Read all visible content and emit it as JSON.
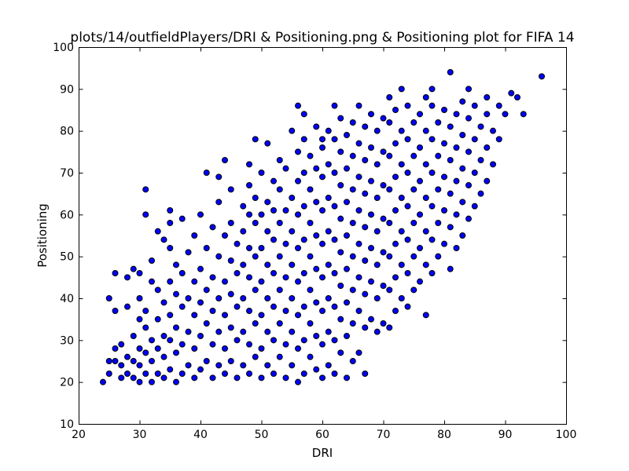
{
  "chart_data": {
    "type": "scatter",
    "title": "plots/14/outfieldPlayers/DRI & Positioning.png & Positioning plot for FIFA 14",
    "xlabel": "DRI",
    "ylabel": "Positioning",
    "xlim": [
      20,
      100
    ],
    "ylim": [
      10,
      100
    ],
    "xticks": [
      20,
      30,
      40,
      50,
      60,
      70,
      80,
      90,
      100
    ],
    "yticks": [
      10,
      20,
      30,
      40,
      50,
      60,
      70,
      80,
      90,
      100
    ],
    "grid": false,
    "legend": "none",
    "marker_color": "#0000ff",
    "edge_color": "#000000",
    "points": [
      [
        24,
        20
      ],
      [
        25,
        22
      ],
      [
        25,
        25
      ],
      [
        25,
        40
      ],
      [
        26,
        46
      ],
      [
        26,
        37
      ],
      [
        26,
        25
      ],
      [
        26,
        28
      ],
      [
        27,
        21
      ],
      [
        27,
        24
      ],
      [
        27,
        29
      ],
      [
        28,
        22
      ],
      [
        28,
        45
      ],
      [
        28,
        38
      ],
      [
        28,
        26
      ],
      [
        29,
        21
      ],
      [
        29,
        25
      ],
      [
        29,
        31
      ],
      [
        29,
        47
      ],
      [
        30,
        20
      ],
      [
        30,
        24
      ],
      [
        30,
        28
      ],
      [
        30,
        35
      ],
      [
        30,
        40
      ],
      [
        30,
        46
      ],
      [
        31,
        66
      ],
      [
        31,
        60
      ],
      [
        31,
        22
      ],
      [
        31,
        27
      ],
      [
        31,
        33
      ],
      [
        31,
        37
      ],
      [
        32,
        20
      ],
      [
        32,
        25
      ],
      [
        32,
        30
      ],
      [
        32,
        44
      ],
      [
        32,
        49
      ],
      [
        33,
        56
      ],
      [
        33,
        22
      ],
      [
        33,
        28
      ],
      [
        33,
        35
      ],
      [
        33,
        42
      ],
      [
        34,
        54
      ],
      [
        34,
        21
      ],
      [
        34,
        26
      ],
      [
        34,
        31
      ],
      [
        34,
        39
      ],
      [
        35,
        61
      ],
      [
        35,
        58
      ],
      [
        35,
        23
      ],
      [
        35,
        30
      ],
      [
        35,
        36
      ],
      [
        35,
        44
      ],
      [
        35,
        52
      ],
      [
        36,
        20
      ],
      [
        36,
        27
      ],
      [
        36,
        33
      ],
      [
        36,
        41
      ],
      [
        36,
        48
      ],
      [
        37,
        59
      ],
      [
        37,
        22
      ],
      [
        37,
        29
      ],
      [
        37,
        38
      ],
      [
        37,
        46
      ],
      [
        38,
        24
      ],
      [
        38,
        32
      ],
      [
        38,
        40
      ],
      [
        38,
        51
      ],
      [
        39,
        21
      ],
      [
        39,
        28
      ],
      [
        39,
        36
      ],
      [
        39,
        44
      ],
      [
        39,
        55
      ],
      [
        40,
        60
      ],
      [
        40,
        23
      ],
      [
        40,
        31
      ],
      [
        40,
        39
      ],
      [
        40,
        47
      ],
      [
        41,
        70
      ],
      [
        41,
        25
      ],
      [
        41,
        34
      ],
      [
        41,
        42
      ],
      [
        41,
        52
      ],
      [
        42,
        57
      ],
      [
        42,
        21
      ],
      [
        42,
        29
      ],
      [
        42,
        37
      ],
      [
        42,
        45
      ],
      [
        43,
        69
      ],
      [
        43,
        63
      ],
      [
        43,
        24
      ],
      [
        43,
        32
      ],
      [
        43,
        40
      ],
      [
        43,
        50
      ],
      [
        44,
        73
      ],
      [
        44,
        22
      ],
      [
        44,
        28
      ],
      [
        44,
        36
      ],
      [
        44,
        44
      ],
      [
        44,
        55
      ],
      [
        45,
        66
      ],
      [
        45,
        25
      ],
      [
        45,
        33
      ],
      [
        45,
        41
      ],
      [
        45,
        49
      ],
      [
        45,
        58
      ],
      [
        46,
        21
      ],
      [
        46,
        30
      ],
      [
        46,
        38
      ],
      [
        46,
        46
      ],
      [
        46,
        53
      ],
      [
        47,
        62
      ],
      [
        47,
        24
      ],
      [
        47,
        32
      ],
      [
        47,
        40
      ],
      [
        47,
        48
      ],
      [
        47,
        56
      ],
      [
        48,
        72
      ],
      [
        48,
        67
      ],
      [
        48,
        22
      ],
      [
        48,
        29
      ],
      [
        48,
        37
      ],
      [
        48,
        45
      ],
      [
        48,
        52
      ],
      [
        48,
        60
      ],
      [
        49,
        78
      ],
      [
        49,
        26
      ],
      [
        49,
        34
      ],
      [
        49,
        42
      ],
      [
        49,
        50
      ],
      [
        49,
        58
      ],
      [
        49,
        64
      ],
      [
        50,
        21
      ],
      [
        50,
        28
      ],
      [
        50,
        36
      ],
      [
        50,
        44
      ],
      [
        50,
        52
      ],
      [
        50,
        60
      ],
      [
        50,
        70
      ],
      [
        51,
        77
      ],
      [
        51,
        24
      ],
      [
        51,
        32
      ],
      [
        51,
        40
      ],
      [
        51,
        48
      ],
      [
        51,
        56
      ],
      [
        51,
        63
      ],
      [
        52,
        68
      ],
      [
        52,
        22
      ],
      [
        52,
        30
      ],
      [
        52,
        38
      ],
      [
        52,
        46
      ],
      [
        52,
        54
      ],
      [
        52,
        61
      ],
      [
        53,
        73
      ],
      [
        53,
        26
      ],
      [
        53,
        34
      ],
      [
        53,
        42
      ],
      [
        53,
        50
      ],
      [
        53,
        58
      ],
      [
        53,
        66
      ],
      [
        54,
        21
      ],
      [
        54,
        29
      ],
      [
        54,
        37
      ],
      [
        54,
        45
      ],
      [
        54,
        53
      ],
      [
        54,
        61
      ],
      [
        54,
        71
      ],
      [
        55,
        80
      ],
      [
        55,
        24
      ],
      [
        55,
        32
      ],
      [
        55,
        40
      ],
      [
        55,
        48
      ],
      [
        55,
        56
      ],
      [
        55,
        64
      ],
      [
        56,
        86
      ],
      [
        56,
        20
      ],
      [
        56,
        28
      ],
      [
        56,
        36
      ],
      [
        56,
        44
      ],
      [
        56,
        52
      ],
      [
        56,
        60
      ],
      [
        56,
        68
      ],
      [
        56,
        75
      ],
      [
        57,
        84
      ],
      [
        57,
        22
      ],
      [
        57,
        30
      ],
      [
        57,
        38
      ],
      [
        57,
        46
      ],
      [
        57,
        54
      ],
      [
        57,
        62
      ],
      [
        57,
        70
      ],
      [
        57,
        78
      ],
      [
        58,
        26
      ],
      [
        58,
        34
      ],
      [
        58,
        42
      ],
      [
        58,
        50
      ],
      [
        58,
        58
      ],
      [
        58,
        66
      ],
      [
        58,
        74
      ],
      [
        59,
        81
      ],
      [
        59,
        23
      ],
      [
        59,
        31
      ],
      [
        59,
        39
      ],
      [
        59,
        47
      ],
      [
        59,
        55
      ],
      [
        59,
        63
      ],
      [
        59,
        71
      ],
      [
        60,
        78
      ],
      [
        60,
        21
      ],
      [
        60,
        29
      ],
      [
        60,
        37
      ],
      [
        60,
        45
      ],
      [
        60,
        53
      ],
      [
        60,
        61
      ],
      [
        60,
        69
      ],
      [
        60,
        76
      ],
      [
        61,
        24
      ],
      [
        61,
        32
      ],
      [
        61,
        40
      ],
      [
        61,
        48
      ],
      [
        61,
        56
      ],
      [
        61,
        64
      ],
      [
        61,
        72
      ],
      [
        61,
        80
      ],
      [
        62,
        86
      ],
      [
        62,
        22
      ],
      [
        62,
        30
      ],
      [
        62,
        38
      ],
      [
        62,
        46
      ],
      [
        62,
        54
      ],
      [
        62,
        62
      ],
      [
        62,
        70
      ],
      [
        62,
        78
      ],
      [
        63,
        27
      ],
      [
        63,
        35
      ],
      [
        63,
        43
      ],
      [
        63,
        51
      ],
      [
        63,
        59
      ],
      [
        63,
        67
      ],
      [
        63,
        75
      ],
      [
        63,
        83
      ],
      [
        64,
        21
      ],
      [
        64,
        31
      ],
      [
        64,
        39
      ],
      [
        64,
        47
      ],
      [
        64,
        55
      ],
      [
        64,
        63
      ],
      [
        64,
        71
      ],
      [
        64,
        79
      ],
      [
        65,
        25
      ],
      [
        65,
        34
      ],
      [
        65,
        42
      ],
      [
        65,
        50
      ],
      [
        65,
        58
      ],
      [
        65,
        66
      ],
      [
        65,
        74
      ],
      [
        65,
        82
      ],
      [
        66,
        86
      ],
      [
        66,
        27
      ],
      [
        66,
        37
      ],
      [
        66,
        45
      ],
      [
        66,
        53
      ],
      [
        66,
        61
      ],
      [
        66,
        69
      ],
      [
        66,
        77
      ],
      [
        67,
        22
      ],
      [
        67,
        33
      ],
      [
        67,
        41
      ],
      [
        67,
        49
      ],
      [
        67,
        57
      ],
      [
        67,
        65
      ],
      [
        67,
        73
      ],
      [
        67,
        81
      ],
      [
        68,
        35
      ],
      [
        68,
        44
      ],
      [
        68,
        52
      ],
      [
        68,
        60
      ],
      [
        68,
        68
      ],
      [
        68,
        76
      ],
      [
        68,
        84
      ],
      [
        69,
        32
      ],
      [
        69,
        40
      ],
      [
        69,
        48
      ],
      [
        69,
        56
      ],
      [
        69,
        64
      ],
      [
        69,
        72
      ],
      [
        69,
        80
      ],
      [
        70,
        34
      ],
      [
        70,
        43
      ],
      [
        70,
        51
      ],
      [
        70,
        59
      ],
      [
        70,
        67
      ],
      [
        70,
        75
      ],
      [
        70,
        83
      ],
      [
        71,
        33
      ],
      [
        71,
        42
      ],
      [
        71,
        50
      ],
      [
        71,
        58
      ],
      [
        71,
        66
      ],
      [
        71,
        74
      ],
      [
        71,
        82
      ],
      [
        71,
        88
      ],
      [
        72,
        37
      ],
      [
        72,
        45
      ],
      [
        72,
        53
      ],
      [
        72,
        61
      ],
      [
        72,
        69
      ],
      [
        72,
        77
      ],
      [
        72,
        85
      ],
      [
        73,
        90
      ],
      [
        73,
        40
      ],
      [
        73,
        48
      ],
      [
        73,
        56
      ],
      [
        73,
        64
      ],
      [
        73,
        72
      ],
      [
        73,
        80
      ],
      [
        74,
        38
      ],
      [
        74,
        46
      ],
      [
        74,
        54
      ],
      [
        74,
        62
      ],
      [
        74,
        70
      ],
      [
        74,
        78
      ],
      [
        74,
        86
      ],
      [
        75,
        42
      ],
      [
        75,
        50
      ],
      [
        75,
        58
      ],
      [
        75,
        66
      ],
      [
        75,
        74
      ],
      [
        75,
        82
      ],
      [
        76,
        44
      ],
      [
        76,
        52
      ],
      [
        76,
        60
      ],
      [
        76,
        68
      ],
      [
        76,
        76
      ],
      [
        76,
        84
      ],
      [
        77,
        36
      ],
      [
        77,
        48
      ],
      [
        77,
        56
      ],
      [
        77,
        64
      ],
      [
        77,
        72
      ],
      [
        77,
        80
      ],
      [
        77,
        88
      ],
      [
        78,
        90
      ],
      [
        78,
        46
      ],
      [
        78,
        54
      ],
      [
        78,
        62
      ],
      [
        78,
        70
      ],
      [
        78,
        78
      ],
      [
        78,
        86
      ],
      [
        79,
        50
      ],
      [
        79,
        58
      ],
      [
        79,
        66
      ],
      [
        79,
        74
      ],
      [
        79,
        82
      ],
      [
        80,
        53
      ],
      [
        80,
        61
      ],
      [
        80,
        69
      ],
      [
        80,
        77
      ],
      [
        80,
        85
      ],
      [
        81,
        94
      ],
      [
        81,
        47
      ],
      [
        81,
        57
      ],
      [
        81,
        65
      ],
      [
        81,
        73
      ],
      [
        81,
        81
      ],
      [
        82,
        52
      ],
      [
        82,
        60
      ],
      [
        82,
        68
      ],
      [
        82,
        76
      ],
      [
        82,
        84
      ],
      [
        83,
        55
      ],
      [
        83,
        63
      ],
      [
        83,
        71
      ],
      [
        83,
        79
      ],
      [
        83,
        87
      ],
      [
        84,
        59
      ],
      [
        84,
        67
      ],
      [
        84,
        75
      ],
      [
        84,
        83
      ],
      [
        84,
        90
      ],
      [
        85,
        62
      ],
      [
        85,
        70
      ],
      [
        85,
        78
      ],
      [
        85,
        86
      ],
      [
        86,
        65
      ],
      [
        86,
        73
      ],
      [
        86,
        81
      ],
      [
        87,
        68
      ],
      [
        87,
        76
      ],
      [
        87,
        84
      ],
      [
        87,
        88
      ],
      [
        88,
        72
      ],
      [
        88,
        80
      ],
      [
        89,
        78
      ],
      [
        89,
        86
      ],
      [
        90,
        84
      ],
      [
        91,
        89
      ],
      [
        92,
        88
      ],
      [
        93,
        84
      ],
      [
        96,
        93
      ]
    ]
  }
}
